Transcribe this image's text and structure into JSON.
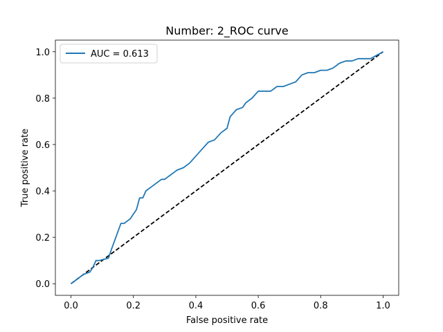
{
  "chart_data": {
    "type": "line",
    "title": "Number: 2_ROC curve",
    "xlabel": "False positive rate",
    "ylabel": "True positive rate",
    "xlim": [
      -0.05,
      1.05
    ],
    "ylim": [
      -0.05,
      1.05
    ],
    "xticks": [
      "0.0",
      "0.2",
      "0.4",
      "0.6",
      "0.8",
      "1.0"
    ],
    "yticks": [
      "0.0",
      "0.2",
      "0.4",
      "0.6",
      "0.8",
      "1.0"
    ],
    "grid": false,
    "legend_position": "upper-left",
    "series": [
      {
        "name": "AUC = 0.613",
        "color": "#1f77b4",
        "style": "solid",
        "x": [
          0.0,
          0.01,
          0.02,
          0.04,
          0.06,
          0.07,
          0.08,
          0.09,
          0.12,
          0.13,
          0.16,
          0.17,
          0.18,
          0.19,
          0.21,
          0.22,
          0.23,
          0.24,
          0.26,
          0.29,
          0.3,
          0.32,
          0.34,
          0.36,
          0.38,
          0.4,
          0.42,
          0.44,
          0.46,
          0.48,
          0.5,
          0.51,
          0.53,
          0.55,
          0.56,
          0.58,
          0.6,
          0.62,
          0.64,
          0.66,
          0.68,
          0.7,
          0.72,
          0.74,
          0.76,
          0.78,
          0.8,
          0.82,
          0.84,
          0.86,
          0.88,
          0.9,
          0.92,
          0.96,
          1.0
        ],
        "y": [
          0.0,
          0.01,
          0.02,
          0.04,
          0.05,
          0.07,
          0.1,
          0.1,
          0.11,
          0.15,
          0.26,
          0.26,
          0.27,
          0.28,
          0.32,
          0.37,
          0.37,
          0.4,
          0.42,
          0.45,
          0.45,
          0.47,
          0.49,
          0.5,
          0.52,
          0.55,
          0.58,
          0.61,
          0.62,
          0.65,
          0.67,
          0.72,
          0.75,
          0.76,
          0.78,
          0.8,
          0.83,
          0.83,
          0.83,
          0.85,
          0.85,
          0.86,
          0.87,
          0.9,
          0.91,
          0.91,
          0.92,
          0.92,
          0.93,
          0.95,
          0.96,
          0.96,
          0.97,
          0.97,
          1.0
        ]
      },
      {
        "name": "",
        "color": "#000000",
        "style": "dashed",
        "x": [
          0.0,
          1.0
        ],
        "y": [
          0.0,
          1.0
        ]
      }
    ]
  }
}
